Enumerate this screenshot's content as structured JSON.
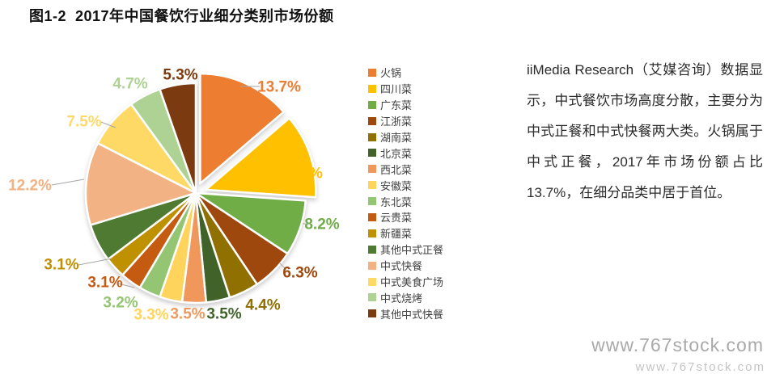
{
  "title": "图1-2  2017年中国餐饮行业细分类别市场份额",
  "chart_data": {
    "type": "pie",
    "title": "2017年中国餐饮行业细分类别市场份额",
    "unit": "percent",
    "start_angle_deg": 0,
    "direction": "clockwise",
    "legend_position": "right",
    "slices": [
      {
        "name": "火锅",
        "value": 13.7,
        "label": "13.7%",
        "color": "#ED7D31",
        "exploded": true
      },
      {
        "name": "四川菜",
        "value": 12.4,
        "label": "12.4%",
        "color": "#FFC000",
        "exploded": true
      },
      {
        "name": "广东菜",
        "value": 8.2,
        "label": "8.2%",
        "color": "#70AD47",
        "exploded": false
      },
      {
        "name": "江浙菜",
        "value": 6.3,
        "label": "6.3%",
        "color": "#9E480E",
        "exploded": false
      },
      {
        "name": "湖南菜",
        "value": 4.4,
        "label": "4.4%",
        "color": "#8F7000",
        "exploded": false
      },
      {
        "name": "北京菜",
        "value": 3.5,
        "label": "3.5%",
        "color": "#41632A",
        "exploded": false
      },
      {
        "name": "西北菜",
        "value": 3.5,
        "label": "3.5%",
        "color": "#F0985C",
        "exploded": false
      },
      {
        "name": "安徽菜",
        "value": 3.3,
        "label": "3.3%",
        "color": "#FFD45C",
        "exploded": false
      },
      {
        "name": "东北菜",
        "value": 3.2,
        "label": "3.2%",
        "color": "#94C573",
        "exploded": false
      },
      {
        "name": "云贵菜",
        "value": 3.1,
        "label": "3.1%",
        "color": "#C55A11",
        "exploded": false
      },
      {
        "name": "新疆菜",
        "value": 3.1,
        "label": "3.1%",
        "color": "#BF9000",
        "exploded": false
      },
      {
        "name": "其他中式正餐",
        "value": 5.6,
        "label": "",
        "color": "#4F7A32",
        "exploded": false
      },
      {
        "name": "中式快餐",
        "value": 12.2,
        "label": "12.2%",
        "color": "#F2B283",
        "exploded": false
      },
      {
        "name": "中式美食广场",
        "value": 7.5,
        "label": "7.5%",
        "color": "#FFD966",
        "exploded": false
      },
      {
        "name": "中式烧烤",
        "value": 4.7,
        "label": "4.7%",
        "color": "#ADD293",
        "exploded": false
      },
      {
        "name": "其他中式快餐",
        "value": 5.3,
        "label": "5.3%",
        "color": "#7B3A10",
        "exploded": false
      }
    ]
  },
  "commentary": {
    "text": "iiMedia Research（艾媒咨询）数据显示，中式餐饮市场高度分散，主要分为中式正餐和中式快餐两大类。火锅属于中式正餐，2017年市场份额占比13.7%，在细分品类中居于首位。"
  },
  "watermark": {
    "main": "www.767stock.com",
    "partial": "www.767stock.com"
  }
}
